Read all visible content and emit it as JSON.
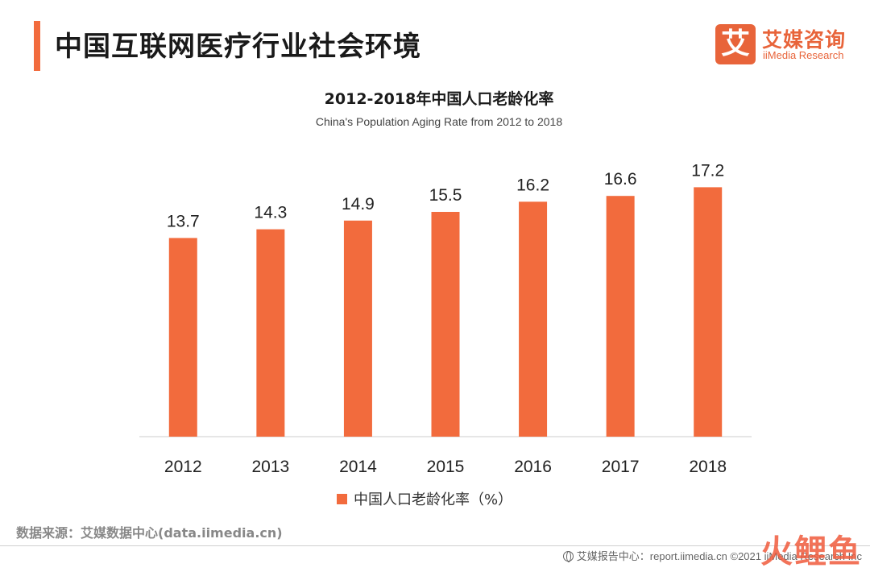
{
  "header": {
    "title": "中国互联网医疗行业社会环境",
    "logo_mark": "艾",
    "logo_cn": "艾媒咨询",
    "logo_en": "iiMedia Research"
  },
  "chart_data": {
    "type": "bar",
    "title": "2012-2018年中国人口老龄化率",
    "subtitle": "China's Population Aging Rate from 2012 to 2018",
    "categories": [
      "2012",
      "2013",
      "2014",
      "2015",
      "2016",
      "2017",
      "2018"
    ],
    "series": [
      {
        "name": "中国人口老龄化率（%）",
        "values": [
          13.7,
          14.3,
          14.9,
          15.5,
          16.2,
          16.6,
          17.2
        ]
      }
    ],
    "data_labels": true,
    "legend_position": "bottom-center",
    "grid": false,
    "ylim": [
      0,
      19
    ],
    "bar_color": "#f26b3d",
    "axis_color": "#cccccc"
  },
  "source": "数据来源：艾媒数据中心(data.iimedia.cn)",
  "footer": {
    "text": "艾媒报告中心：report.iimedia.cn  ©2021  iiMedia Research  Inc",
    "icon": "globe-icon"
  },
  "watermark": "火鲤鱼"
}
